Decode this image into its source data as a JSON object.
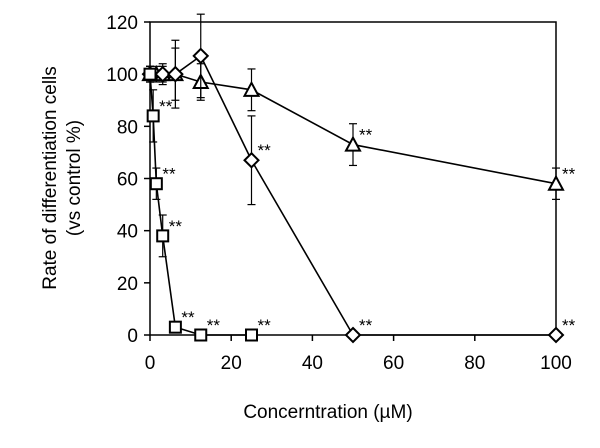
{
  "chart_data": {
    "type": "scatter",
    "title": "",
    "xlabel": "Concerntration (µM)",
    "ylabel_lines": [
      "Rate of differentiation cells",
      "(vs control %)"
    ],
    "xlim": [
      0,
      100
    ],
    "ylim": [
      0,
      120
    ],
    "x_ticks": [
      0,
      20,
      40,
      60,
      80,
      100
    ],
    "y_ticks": [
      0,
      20,
      40,
      60,
      80,
      100,
      120
    ],
    "grid": false,
    "legend": "none",
    "series": [
      {
        "marker": "square",
        "x": [
          0,
          0.78,
          1.56,
          3.13,
          6.25,
          12.5,
          25
        ],
        "y": [
          100,
          84,
          58,
          38,
          3,
          0,
          0
        ],
        "err": [
          3,
          10,
          6,
          8,
          1,
          0,
          0
        ],
        "annotations": [
          "",
          "**",
          "**",
          "**",
          "**",
          "**",
          "**"
        ]
      },
      {
        "marker": "diamond",
        "x": [
          0,
          3.13,
          6.25,
          12.5,
          25,
          50,
          100
        ],
        "y": [
          100,
          100,
          100,
          107,
          67,
          0,
          0
        ],
        "err": [
          3,
          4,
          13,
          16,
          17,
          0,
          0
        ],
        "annotations": [
          "",
          "",
          "",
          "",
          "**",
          "**",
          "**"
        ]
      },
      {
        "marker": "triangle",
        "x": [
          0,
          1.56,
          3.13,
          6.25,
          12.5,
          25,
          50,
          100
        ],
        "y": [
          100,
          100,
          100,
          100,
          97,
          94,
          73,
          58
        ],
        "err": [
          3,
          3,
          3,
          10,
          7,
          8,
          8,
          6
        ],
        "annotations": [
          "",
          "",
          "",
          "",
          "",
          "",
          "**",
          "**"
        ]
      }
    ]
  }
}
